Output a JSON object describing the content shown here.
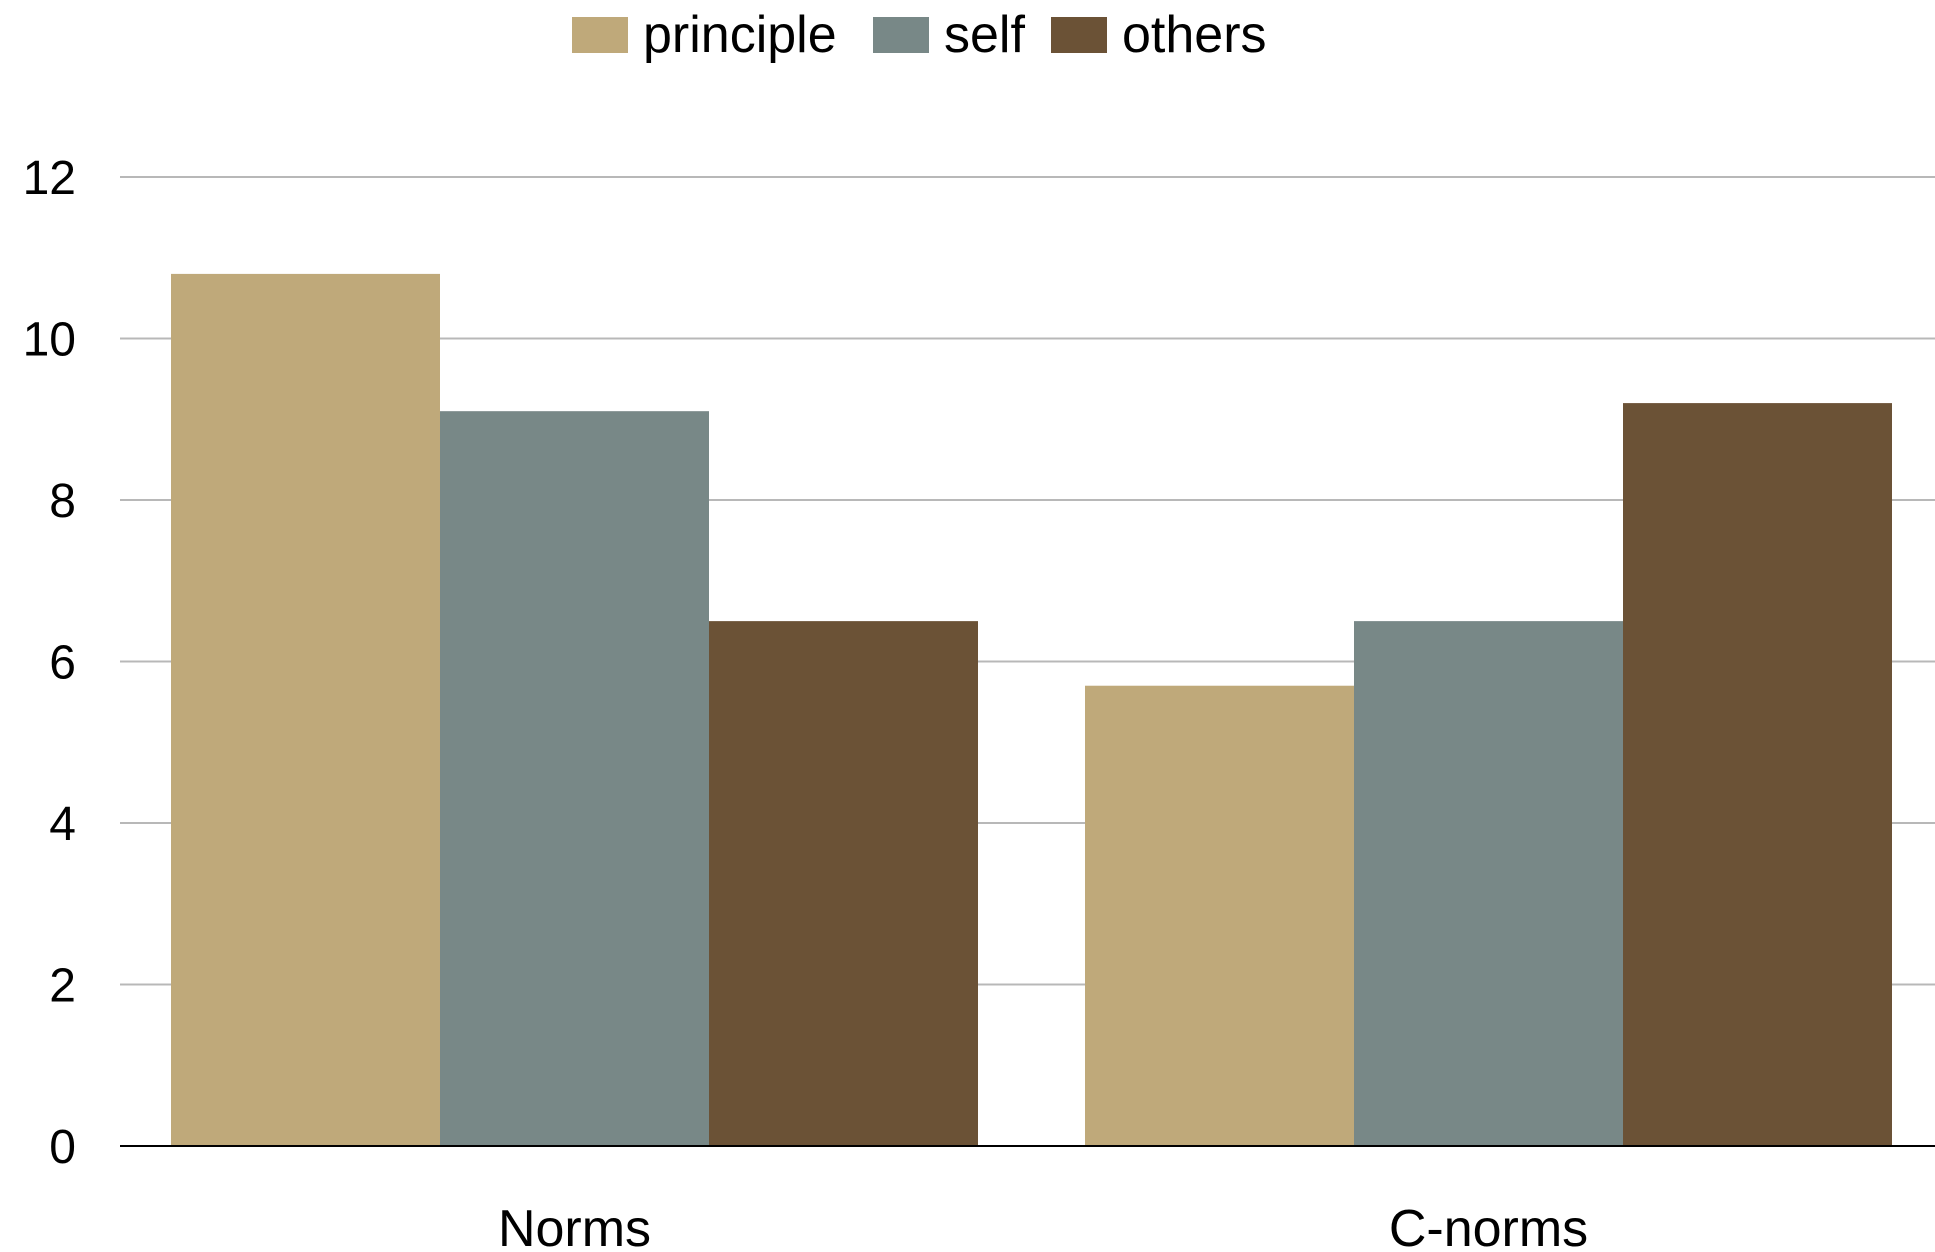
{
  "chart_data": {
    "type": "bar",
    "title": "",
    "xlabel": "",
    "ylabel": "",
    "categories": [
      "Norms",
      "C-norms"
    ],
    "series": [
      {
        "name": "principle",
        "color": "#bfa97a",
        "values": [
          10.8,
          5.7
        ]
      },
      {
        "name": "self",
        "color": "#788887",
        "values": [
          9.1,
          6.5
        ]
      },
      {
        "name": "others",
        "color": "#6b5236",
        "values": [
          6.5,
          9.2
        ]
      }
    ],
    "ylim": [
      0,
      12
    ],
    "yticks": [
      "0",
      "2",
      "4",
      "6",
      "8",
      "10",
      "12"
    ],
    "grid": true,
    "legend_position": "top-center"
  }
}
